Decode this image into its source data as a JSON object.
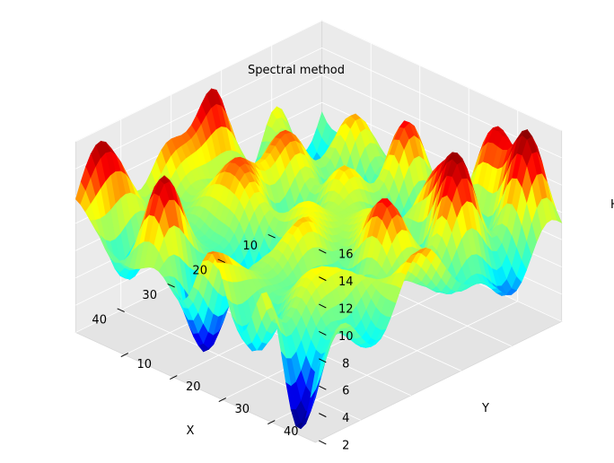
{
  "chart_data": {
    "type": "surface3d",
    "title": "Spectral method",
    "xlabel": "X",
    "ylabel": "Y",
    "zlabel": "H",
    "x_ticks": [
      10,
      20,
      30,
      40
    ],
    "y_ticks": [
      10,
      20,
      30,
      40
    ],
    "z_ticks": [
      2,
      4,
      6,
      8,
      10,
      12,
      14,
      16
    ],
    "xlim": [
      0,
      49
    ],
    "ylim": [
      0,
      49
    ],
    "zlim": [
      2,
      16
    ],
    "colormap": "jet",
    "colormap_stops": [
      "#00007f",
      "#0000ff",
      "#00ffff",
      "#7fff7f",
      "#ffff00",
      "#ff0000",
      "#7f0000"
    ],
    "pane_color": "#ebebeb",
    "grid": true
  }
}
